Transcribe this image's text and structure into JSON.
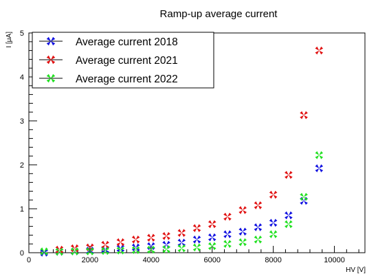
{
  "chart_data": {
    "type": "scatter",
    "title": "Ramp-up average current",
    "xlabel": "HV [V]",
    "ylabel": "I [μA]",
    "xlim": [
      0,
      11000
    ],
    "ylim": [
      0,
      5
    ],
    "x_ticks": [
      0,
      2000,
      4000,
      6000,
      8000,
      10000
    ],
    "y_ticks": [
      0,
      1,
      2,
      3,
      4,
      5
    ],
    "grid": false,
    "legend_position": "top-left",
    "marker": "star-x",
    "series": [
      {
        "name": "Average current 2018",
        "color": "#1010e0",
        "x": [
          500,
          1000,
          1500,
          2000,
          2500,
          3000,
          3500,
          4000,
          4500,
          5000,
          5500,
          6000,
          6500,
          7000,
          7500,
          8000,
          8500,
          9000,
          9500
        ],
        "y": [
          0.0,
          0.02,
          0.03,
          0.05,
          0.07,
          0.1,
          0.12,
          0.15,
          0.18,
          0.23,
          0.3,
          0.35,
          0.42,
          0.48,
          0.58,
          0.68,
          0.85,
          1.18,
          1.92
        ]
      },
      {
        "name": "Average current 2021",
        "color": "#e01010",
        "x": [
          1000,
          1500,
          2000,
          2500,
          3000,
          3500,
          4000,
          4500,
          5000,
          5500,
          6000,
          6500,
          7000,
          7500,
          8000,
          8500,
          9000,
          9500
        ],
        "y": [
          0.07,
          0.1,
          0.12,
          0.18,
          0.24,
          0.3,
          0.34,
          0.38,
          0.45,
          0.56,
          0.65,
          0.82,
          0.97,
          1.08,
          1.32,
          1.77,
          3.13,
          4.6
        ]
      },
      {
        "name": "Average current 2022",
        "color": "#20e020",
        "x": [
          500,
          1000,
          1500,
          2000,
          2500,
          3000,
          3500,
          4000,
          4500,
          5000,
          5500,
          6000,
          6500,
          7000,
          7500,
          8000,
          8500,
          9000,
          9500
        ],
        "y": [
          0.03,
          0.02,
          0.03,
          0.03,
          0.04,
          0.05,
          0.06,
          0.07,
          0.08,
          0.1,
          0.12,
          0.15,
          0.2,
          0.24,
          0.3,
          0.42,
          0.65,
          1.27,
          2.22
        ]
      }
    ]
  }
}
